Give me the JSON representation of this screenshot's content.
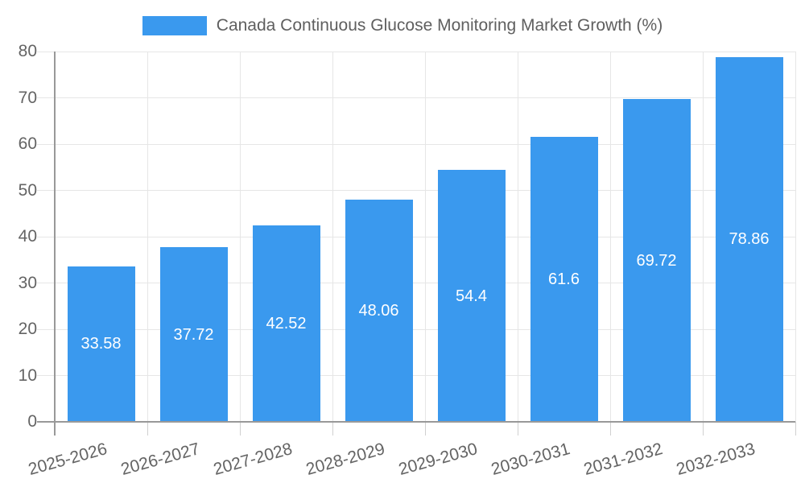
{
  "chart_data": {
    "type": "bar",
    "title": "Canada Continuous Glucose Monitoring Market Growth (%)",
    "legend": {
      "position": "top",
      "items": [
        {
          "label": "Canada Continuous Glucose Monitoring Market Growth (%)",
          "color": "#3a99ee"
        }
      ]
    },
    "categories": [
      "2025-2026",
      "2026-2027",
      "2027-2028",
      "2028-2029",
      "2029-2030",
      "2030-2031",
      "2031-2032",
      "2032-2033"
    ],
    "series": [
      {
        "name": "Canada Continuous Glucose Monitoring Market Growth (%)",
        "values": [
          33.58,
          37.72,
          42.52,
          48.06,
          54.4,
          61.6,
          69.72,
          78.86
        ]
      }
    ],
    "value_labels": [
      "33.58",
      "37.72",
      "42.52",
      "48.06",
      "54.4",
      "61.6",
      "69.72",
      "78.86"
    ],
    "xlabel": "",
    "ylabel": "",
    "ylim": [
      0,
      80
    ],
    "yticks": [
      0,
      10,
      20,
      30,
      40,
      50,
      60,
      70,
      80
    ],
    "grid": true,
    "colors": {
      "bar": "#3a99ee",
      "grid": "#e6e6e6",
      "axis": "#999999",
      "x_tick_mark": "#d0d0d0",
      "tick_label": "#646464",
      "legend_label": "#5f5f5f",
      "value_label": "#ffffff",
      "background": "#ffffff"
    }
  }
}
